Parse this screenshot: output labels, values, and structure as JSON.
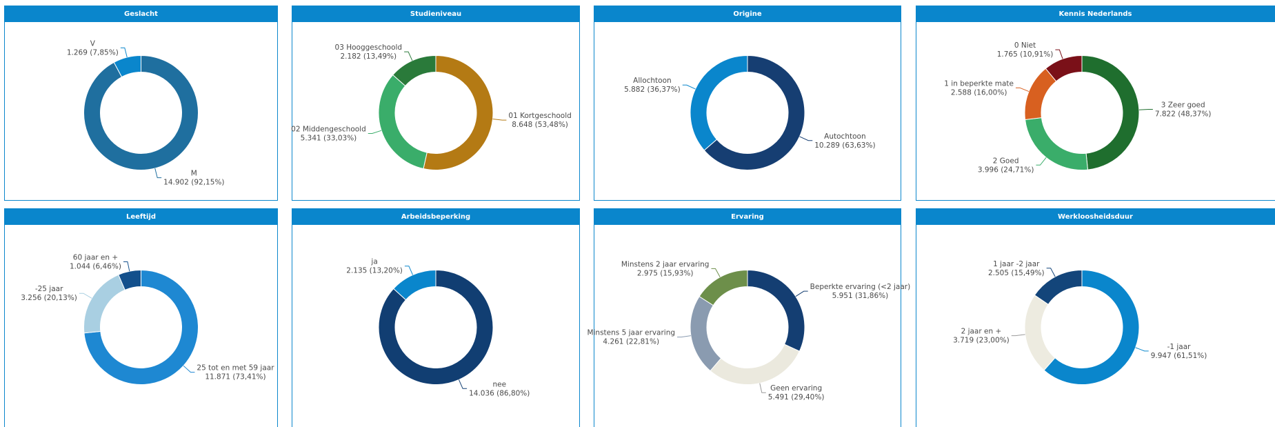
{
  "chart_data": [
    {
      "type": "pie",
      "title": "Geslacht",
      "categories": [
        "M",
        "V"
      ],
      "values": [
        14902,
        1269
      ],
      "value_labels": [
        "14.902 (92,15%)",
        "1.269 (7,85%)"
      ],
      "colors": [
        "#1f6f9f",
        "#0a86cc"
      ]
    },
    {
      "type": "pie",
      "title": "Studieniveau",
      "categories": [
        "01 Kortgeschoold",
        "02 Middengeschoold",
        "03 Hooggeschoold"
      ],
      "values": [
        8648,
        5341,
        2182
      ],
      "value_labels": [
        "8.648 (53,48%)",
        "5.341 (33,03%)",
        "2.182 (13,49%)"
      ],
      "colors": [
        "#b47a14",
        "#3aad6a",
        "#2a7a3a"
      ]
    },
    {
      "type": "pie",
      "title": "Origine",
      "categories": [
        "Autochtoon",
        "Allochtoon"
      ],
      "values": [
        10289,
        5882
      ],
      "value_labels": [
        "10.289 (63,63%)",
        "5.882 (36,37%)"
      ],
      "colors": [
        "#163e72",
        "#0a86cc"
      ]
    },
    {
      "type": "pie",
      "title": "Kennis Nederlands",
      "categories": [
        "3 Zeer goed",
        "2 Goed",
        "1 in beperkte mate",
        "0 Niet"
      ],
      "values": [
        7822,
        3996,
        2588,
        1765
      ],
      "value_labels": [
        "7.822 (48,37%)",
        "3.996 (24,71%)",
        "2.588 (16,00%)",
        "1.765 (10,91%)"
      ],
      "colors": [
        "#1f6e2e",
        "#3aad6a",
        "#d86020",
        "#7a1018"
      ]
    },
    {
      "type": "pie",
      "title": "Leeftijd",
      "categories": [
        "25 tot en met 59 jaar",
        "-25 jaar",
        "60 jaar en +"
      ],
      "values": [
        11871,
        3256,
        1044
      ],
      "value_labels": [
        "11.871 (73,41%)",
        "3.256 (20,13%)",
        "1.044 (6,46%)"
      ],
      "colors": [
        "#1e88d2",
        "#a9cfe2",
        "#13508c"
      ]
    },
    {
      "type": "pie",
      "title": "Arbeidsbeperking",
      "categories": [
        "nee",
        "ja"
      ],
      "values": [
        14036,
        2135
      ],
      "value_labels": [
        "14.036 (86,80%)",
        "2.135 (13,20%)"
      ],
      "colors": [
        "#113e72",
        "#0a86cc"
      ]
    },
    {
      "type": "pie",
      "title": "Ervaring",
      "categories": [
        "Beperkte ervaring (<2 jaar)",
        "Geen ervaring",
        "Minstens 5 jaar ervaring",
        "Minstens 2 jaar ervaring"
      ],
      "values": [
        5951,
        5491,
        4261,
        2975
      ],
      "value_labels": [
        "5.951 (31,86%)",
        "5.491 (29,40%)",
        "4.261 (22,81%)",
        "2.975 (15,93%)"
      ],
      "colors": [
        "#143e72",
        "#ebe9de",
        "#8a9bb0",
        "#6d8f4a"
      ]
    },
    {
      "type": "pie",
      "title": "Werkloosheidsduur",
      "categories": [
        "-1 jaar",
        "2 jaar en +",
        "1 jaar -2 jaar"
      ],
      "values": [
        9947,
        3719,
        2505
      ],
      "value_labels": [
        "9.947 (61,51%)",
        "3.719 (23,00%)",
        "2.505 (15,49%)"
      ],
      "colors": [
        "#0a86cc",
        "#edebe0",
        "#13457a"
      ]
    }
  ]
}
